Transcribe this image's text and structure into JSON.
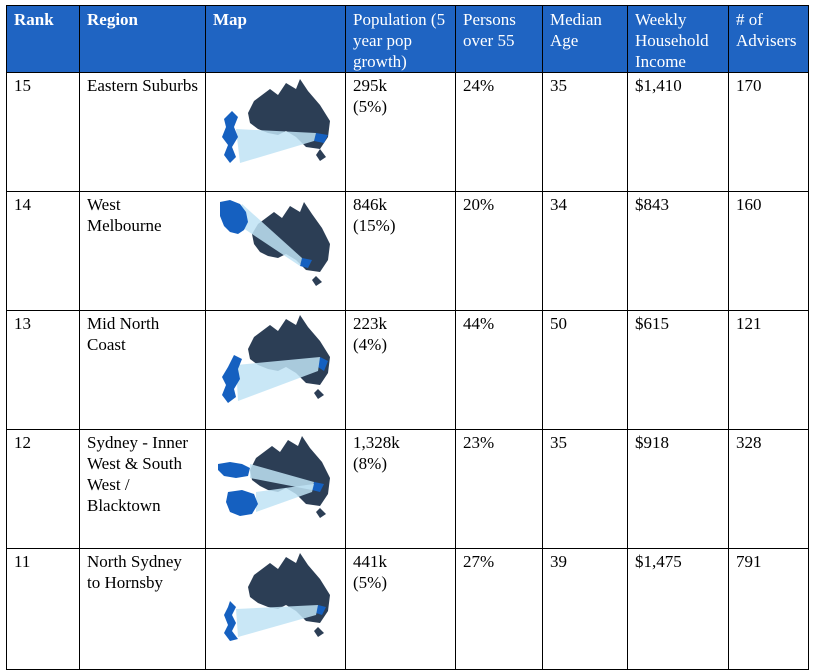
{
  "headers": {
    "rank": "Rank",
    "region": "Region",
    "map": "Map",
    "population": "Population (5 year pop growth)",
    "persons_over_55": "Persons over 55",
    "median_age": "Median Age",
    "weekly_income": "Weekly Household Income",
    "advisers": "# of Advisers"
  },
  "rows": [
    {
      "rank": "15",
      "region": "Eastern Suburbs",
      "map_icon": "australia-map-icon",
      "population": "295k",
      "growth": "(5%)",
      "persons_over_55": "24%",
      "median_age": "35",
      "weekly_income": "$1,410",
      "advisers": "170"
    },
    {
      "rank": "14",
      "region": "West Melbourne",
      "map_icon": "australia-map-icon",
      "population": "846k",
      "growth": "(15%)",
      "persons_over_55": "20%",
      "median_age": "34",
      "weekly_income": "$843",
      "advisers": "160"
    },
    {
      "rank": "13",
      "region": "Mid North Coast",
      "map_icon": "australia-map-icon",
      "population": "223k",
      "growth": "(4%)",
      "persons_over_55": "44%",
      "median_age": "50",
      "weekly_income": "$615",
      "advisers": "121"
    },
    {
      "rank": "12",
      "region": "Sydney - Inner West & South West / Blacktown",
      "map_icon": "australia-map-icon",
      "population": "1,328k",
      "growth": "(8%)",
      "persons_over_55": "23%",
      "median_age": "35",
      "weekly_income": "$918",
      "advisers": "328"
    },
    {
      "rank": "11",
      "region": "North Sydney to Hornsby",
      "map_icon": "australia-map-icon",
      "population": "441k",
      "growth": "(5%)",
      "persons_over_55": "27%",
      "median_age": "39",
      "weekly_income": "$1,475",
      "advisers": "791"
    }
  ],
  "colors": {
    "header_bg": "#1f64c2",
    "map_land": "#2c3e55",
    "map_region": "#1560c0",
    "map_beam": "#bfe3f5"
  }
}
